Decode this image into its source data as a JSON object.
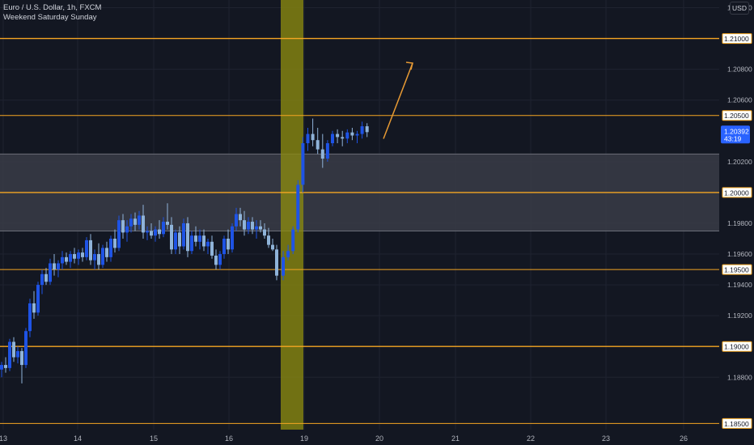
{
  "header": {
    "symbol_line": "Euro / U.S. Dollar, 1h, FXCM",
    "session_line": "Weekend Saturday Sunday"
  },
  "scale": {
    "currency_button": "USD"
  },
  "colors": {
    "background": "#131722",
    "grid": "#1f2330",
    "level_line": "#f5a623",
    "weekend_band": "#8c8a10",
    "zone": "#3a3c46",
    "candle_up": "#1e53e5",
    "candle_down": "#8fb3d9",
    "axis_text": "#b2b5be",
    "current_price_bg": "#2962ff",
    "arrow": "#e79a34"
  },
  "chart_data": {
    "type": "candlestick",
    "symbol": "EURUSD",
    "interval": "1h",
    "y_axis": {
      "ylim": [
        1.1846,
        1.2125
      ],
      "ticks": [
        "1.21200",
        "1.21000",
        "1.20800",
        "1.20600",
        "1.20500",
        "1.20392",
        "1.20200",
        "1.20000",
        "1.19800",
        "1.19600",
        "1.19500",
        "1.19400",
        "1.19200",
        "1.19000",
        "1.18800",
        "1.18500"
      ]
    },
    "x_axis": {
      "ticks": [
        "13",
        "14",
        "15",
        "16",
        "19",
        "20",
        "21",
        "22",
        "23",
        "26"
      ]
    },
    "grid": true,
    "horizontal_levels": [
      {
        "price": 1.21,
        "label": "1.21000",
        "style": "thin"
      },
      {
        "price": 1.205,
        "label": "1.20500",
        "style": "thin"
      },
      {
        "price": 1.2,
        "label": "1.20000",
        "style": "thin"
      },
      {
        "price": 1.195,
        "label": "1.19500",
        "style": "thin"
      },
      {
        "price": 1.19,
        "label": "1.19000",
        "style": "thin"
      },
      {
        "price": 1.185,
        "label": "1.18500",
        "style": "thin"
      }
    ],
    "zone": {
      "from": 1.1975,
      "to": 1.2025
    },
    "weekend_highlight": {
      "label": "Weekend Saturday Sunday"
    },
    "current_price": {
      "value": 1.20392,
      "label": "1.20392",
      "countdown": "43:19"
    },
    "projection_arrow": {
      "from_price": 1.2037,
      "to_price": 1.2084,
      "direction": "up"
    },
    "candles": [
      [
        1.1885,
        1.189,
        1.188,
        1.1888
      ],
      [
        1.1888,
        1.1893,
        1.1883,
        1.1886
      ],
      [
        1.1886,
        1.1905,
        1.1884,
        1.1903
      ],
      [
        1.1903,
        1.1906,
        1.189,
        1.1893
      ],
      [
        1.1893,
        1.19,
        1.1889,
        1.1897
      ],
      [
        1.1897,
        1.1899,
        1.1876,
        1.1888
      ],
      [
        1.1888,
        1.1912,
        1.1886,
        1.191
      ],
      [
        1.191,
        1.1931,
        1.1906,
        1.1928
      ],
      [
        1.1928,
        1.1936,
        1.1918,
        1.1922
      ],
      [
        1.1922,
        1.1942,
        1.192,
        1.194
      ],
      [
        1.194,
        1.195,
        1.1934,
        1.1947
      ],
      [
        1.1947,
        1.1951,
        1.194,
        1.1942
      ],
      [
        1.1942,
        1.1957,
        1.194,
        1.1954
      ],
      [
        1.1954,
        1.196,
        1.1946,
        1.195
      ],
      [
        1.195,
        1.1956,
        1.1945,
        1.1954
      ],
      [
        1.1954,
        1.1962,
        1.195,
        1.1958
      ],
      [
        1.1958,
        1.1961,
        1.1953,
        1.1955
      ],
      [
        1.1955,
        1.1962,
        1.1951,
        1.196
      ],
      [
        1.196,
        1.1964,
        1.1954,
        1.1957
      ],
      [
        1.1957,
        1.1963,
        1.1953,
        1.1961
      ],
      [
        1.1961,
        1.1964,
        1.1955,
        1.1958
      ],
      [
        1.1958,
        1.1971,
        1.1956,
        1.1969
      ],
      [
        1.1969,
        1.1973,
        1.1953,
        1.1956
      ],
      [
        1.1956,
        1.1963,
        1.195,
        1.196
      ],
      [
        1.196,
        1.1967,
        1.195,
        1.1953
      ],
      [
        1.1953,
        1.1966,
        1.1951,
        1.1964
      ],
      [
        1.1964,
        1.1968,
        1.1955,
        1.1958
      ],
      [
        1.1958,
        1.1972,
        1.1955,
        1.197
      ],
      [
        1.197,
        1.1976,
        1.1961,
        1.1964
      ],
      [
        1.1964,
        1.1985,
        1.1962,
        1.1982
      ],
      [
        1.1982,
        1.1986,
        1.197,
        1.1974
      ],
      [
        1.1974,
        1.1982,
        1.1968,
        1.1978
      ],
      [
        1.1978,
        1.1986,
        1.1974,
        1.1983
      ],
      [
        1.1983,
        1.1987,
        1.1975,
        1.1979
      ],
      [
        1.1979,
        1.1988,
        1.1976,
        1.1985
      ],
      [
        1.1985,
        1.1992,
        1.197,
        1.1974
      ],
      [
        1.1974,
        1.1978,
        1.1969,
        1.1975
      ],
      [
        1.1975,
        1.198,
        1.197,
        1.1972
      ],
      [
        1.1972,
        1.1978,
        1.1968,
        1.1976
      ],
      [
        1.1976,
        1.1982,
        1.197,
        1.1973
      ],
      [
        1.1973,
        1.1984,
        1.1971,
        1.1981
      ],
      [
        1.1981,
        1.1993,
        1.1976,
        1.1979
      ],
      [
        1.1979,
        1.1984,
        1.196,
        1.1963
      ],
      [
        1.1963,
        1.1976,
        1.196,
        1.1974
      ],
      [
        1.1974,
        1.1978,
        1.196,
        1.1965
      ],
      [
        1.1965,
        1.1983,
        1.1963,
        1.198
      ],
      [
        1.198,
        1.1984,
        1.1958,
        1.1962
      ],
      [
        1.1962,
        1.1975,
        1.196,
        1.1972
      ],
      [
        1.1972,
        1.1978,
        1.1965,
        1.1968
      ],
      [
        1.1968,
        1.1976,
        1.1963,
        1.1972
      ],
      [
        1.1972,
        1.1976,
        1.1962,
        1.1965
      ],
      [
        1.1965,
        1.197,
        1.196,
        1.1968
      ],
      [
        1.1968,
        1.1972,
        1.1957,
        1.1959
      ],
      [
        1.1959,
        1.1963,
        1.195,
        1.1953
      ],
      [
        1.1953,
        1.1962,
        1.195,
        1.196
      ],
      [
        1.196,
        1.1972,
        1.1957,
        1.197
      ],
      [
        1.197,
        1.1976,
        1.196,
        1.1963
      ],
      [
        1.1963,
        1.198,
        1.1961,
        1.1978
      ],
      [
        1.1978,
        1.199,
        1.1975,
        1.1986
      ],
      [
        1.1986,
        1.199,
        1.1978,
        1.1982
      ],
      [
        1.1982,
        1.1988,
        1.1972,
        1.1976
      ],
      [
        1.1976,
        1.1984,
        1.1973,
        1.1981
      ],
      [
        1.1981,
        1.1984,
        1.1973,
        1.1976
      ],
      [
        1.1976,
        1.1982,
        1.197,
        1.1978
      ],
      [
        1.1978,
        1.1982,
        1.1974,
        1.1976
      ],
      [
        1.1976,
        1.198,
        1.197,
        1.1972
      ],
      [
        1.1972,
        1.1977,
        1.1964,
        1.1966
      ],
      [
        1.1966,
        1.197,
        1.1962,
        1.1963
      ],
      [
        1.1963,
        1.1966,
        1.1943,
        1.1946
      ],
      [
        1.1946,
        1.1962,
        1.1943,
        1.1958
      ],
      [
        1.1958,
        1.1966,
        1.1956,
        1.1962
      ],
      [
        1.1962,
        1.1978,
        1.196,
        1.1976
      ],
      [
        1.1976,
        1.2008,
        1.1974,
        1.2005
      ],
      [
        1.2005,
        1.2036,
        1.2,
        1.2032
      ],
      [
        1.2032,
        1.2042,
        1.2027,
        1.2038
      ],
      [
        1.2038,
        1.2048,
        1.203,
        1.2034
      ],
      [
        1.2034,
        1.2042,
        1.2025,
        1.2028
      ],
      [
        1.2028,
        1.2038,
        1.2016,
        1.2022
      ],
      [
        1.2022,
        1.2034,
        1.202,
        1.2032
      ],
      [
        1.2032,
        1.204,
        1.203,
        1.2038
      ],
      [
        1.2038,
        1.2041,
        1.2032,
        1.2036
      ],
      [
        1.2036,
        1.204,
        1.203,
        1.2035
      ],
      [
        1.2035,
        1.2041,
        1.2032,
        1.2039
      ],
      [
        1.2039,
        1.2042,
        1.2034,
        1.2037
      ],
      [
        1.2037,
        1.204,
        1.2032,
        1.2038
      ],
      [
        1.2038,
        1.2046,
        1.2035,
        1.2043
      ],
      [
        1.2043,
        1.2045,
        1.2036,
        1.20392
      ]
    ]
  }
}
